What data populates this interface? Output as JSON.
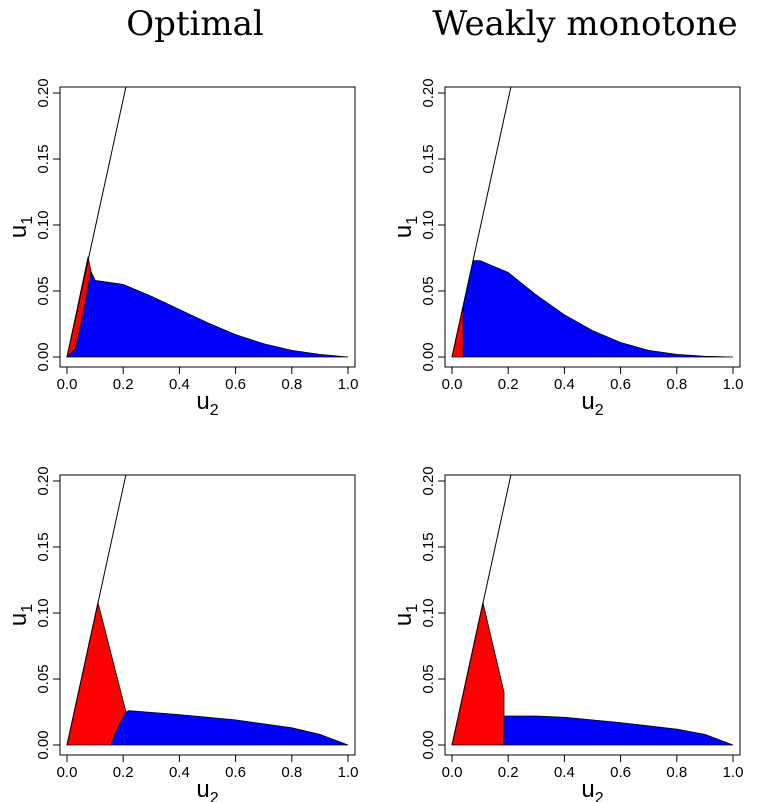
{
  "titles": {
    "left": "Optimal",
    "right": "Weakly monotone"
  },
  "chart_data": [
    {
      "type": "area",
      "title": "Optimal",
      "xlabel": "u",
      "xlabel_sub": "2",
      "ylabel": "u",
      "ylabel_sub": "1",
      "xlim": [
        0,
        1
      ],
      "ylim": [
        0,
        0.2
      ],
      "xticks": [
        "0.0",
        "0.2",
        "0.4",
        "0.6",
        "0.8",
        "1.0"
      ],
      "yticks": [
        "0.00",
        "0.05",
        "0.10",
        "0.15",
        "0.20"
      ],
      "line": [
        [
          0,
          0
        ],
        [
          0.21,
          0.205
        ]
      ],
      "colors": {
        "red": "#ff0000",
        "blue": "#0000ff"
      },
      "regions": [
        {
          "color": "red",
          "points": [
            [
              0,
              0
            ],
            [
              0.075,
              0.076
            ],
            [
              0.085,
              0.065
            ],
            [
              0.06,
              0.035
            ],
            [
              0.03,
              0.006
            ],
            [
              0,
              0
            ]
          ]
        },
        {
          "color": "blue",
          "points": [
            [
              0,
              0
            ],
            [
              0.03,
              0.006
            ],
            [
              0.06,
              0.035
            ],
            [
              0.085,
              0.065
            ],
            [
              0.1,
              0.058
            ],
            [
              0.2,
              0.055
            ],
            [
              0.3,
              0.046
            ],
            [
              0.4,
              0.036
            ],
            [
              0.5,
              0.026
            ],
            [
              0.6,
              0.017
            ],
            [
              0.7,
              0.01
            ],
            [
              0.8,
              0.005
            ],
            [
              0.9,
              0.002
            ],
            [
              1.0,
              0.0
            ],
            [
              0,
              0
            ]
          ]
        }
      ]
    },
    {
      "type": "area",
      "title": "Weakly monotone",
      "xlabel": "u",
      "xlabel_sub": "2",
      "ylabel": "u",
      "ylabel_sub": "1",
      "xlim": [
        0,
        1
      ],
      "ylim": [
        0,
        0.2
      ],
      "xticks": [
        "0.0",
        "0.2",
        "0.4",
        "0.6",
        "0.8",
        "1.0"
      ],
      "yticks": [
        "0.00",
        "0.05",
        "0.10",
        "0.15",
        "0.20"
      ],
      "line": [
        [
          0,
          0
        ],
        [
          0.21,
          0.205
        ]
      ],
      "colors": {
        "red": "#ff0000",
        "blue": "#0000ff"
      },
      "regions": [
        {
          "color": "red",
          "points": [
            [
              0,
              0
            ],
            [
              0.04,
              0.039
            ],
            [
              0.04,
              0
            ],
            [
              0,
              0
            ]
          ]
        },
        {
          "color": "blue",
          "points": [
            [
              0.04,
              0
            ],
            [
              0.04,
              0.039
            ],
            [
              0.075,
              0.073
            ],
            [
              0.1,
              0.073
            ],
            [
              0.2,
              0.064
            ],
            [
              0.3,
              0.047
            ],
            [
              0.4,
              0.032
            ],
            [
              0.5,
              0.02
            ],
            [
              0.6,
              0.011
            ],
            [
              0.7,
              0.005
            ],
            [
              0.8,
              0.002
            ],
            [
              0.9,
              0.0005
            ],
            [
              1.0,
              0.0
            ],
            [
              0.04,
              0
            ]
          ]
        }
      ]
    },
    {
      "type": "area",
      "title": "",
      "xlabel": "u",
      "xlabel_sub": "2",
      "ylabel": "u",
      "ylabel_sub": "1",
      "xlim": [
        0,
        1
      ],
      "ylim": [
        0,
        0.2
      ],
      "xticks": [
        "0.0",
        "0.2",
        "0.4",
        "0.6",
        "0.8",
        "1.0"
      ],
      "yticks": [
        "0.00",
        "0.05",
        "0.10",
        "0.15",
        "0.20"
      ],
      "line": [
        [
          0,
          0
        ],
        [
          0.21,
          0.205
        ]
      ],
      "colors": {
        "red": "#ff0000",
        "blue": "#0000ff"
      },
      "regions": [
        {
          "color": "red",
          "points": [
            [
              0,
              0
            ],
            [
              0.11,
              0.108
            ],
            [
              0.21,
              0.025
            ],
            [
              0.19,
              0.017
            ],
            [
              0.155,
              0.0
            ],
            [
              0,
              0
            ]
          ]
        },
        {
          "color": "blue",
          "points": [
            [
              0.155,
              0
            ],
            [
              0.19,
              0.017
            ],
            [
              0.21,
              0.025
            ],
            [
              0.22,
              0.026
            ],
            [
              0.4,
              0.023
            ],
            [
              0.6,
              0.019
            ],
            [
              0.8,
              0.013
            ],
            [
              0.9,
              0.008
            ],
            [
              1.0,
              0.0
            ],
            [
              0.155,
              0
            ]
          ]
        }
      ]
    },
    {
      "type": "area",
      "title": "",
      "xlabel": "u",
      "xlabel_sub": "2",
      "ylabel": "u",
      "ylabel_sub": "1",
      "xlim": [
        0,
        1
      ],
      "ylim": [
        0,
        0.2
      ],
      "xticks": [
        "0.0",
        "0.2",
        "0.4",
        "0.6",
        "0.8",
        "1.0"
      ],
      "yticks": [
        "0.00",
        "0.05",
        "0.10",
        "0.15",
        "0.20"
      ],
      "line": [
        [
          0,
          0
        ],
        [
          0.21,
          0.205
        ]
      ],
      "colors": {
        "red": "#ff0000",
        "blue": "#0000ff"
      },
      "regions": [
        {
          "color": "red",
          "points": [
            [
              0,
              0
            ],
            [
              0.11,
              0.108
            ],
            [
              0.185,
              0.04
            ],
            [
              0.185,
              0.0
            ],
            [
              0,
              0
            ]
          ]
        },
        {
          "color": "blue",
          "points": [
            [
              0.185,
              0
            ],
            [
              0.185,
              0.022
            ],
            [
              0.3,
              0.022
            ],
            [
              0.4,
              0.021
            ],
            [
              0.6,
              0.017
            ],
            [
              0.8,
              0.012
            ],
            [
              0.9,
              0.008
            ],
            [
              1.0,
              0.0
            ],
            [
              0.185,
              0
            ]
          ]
        }
      ]
    }
  ]
}
